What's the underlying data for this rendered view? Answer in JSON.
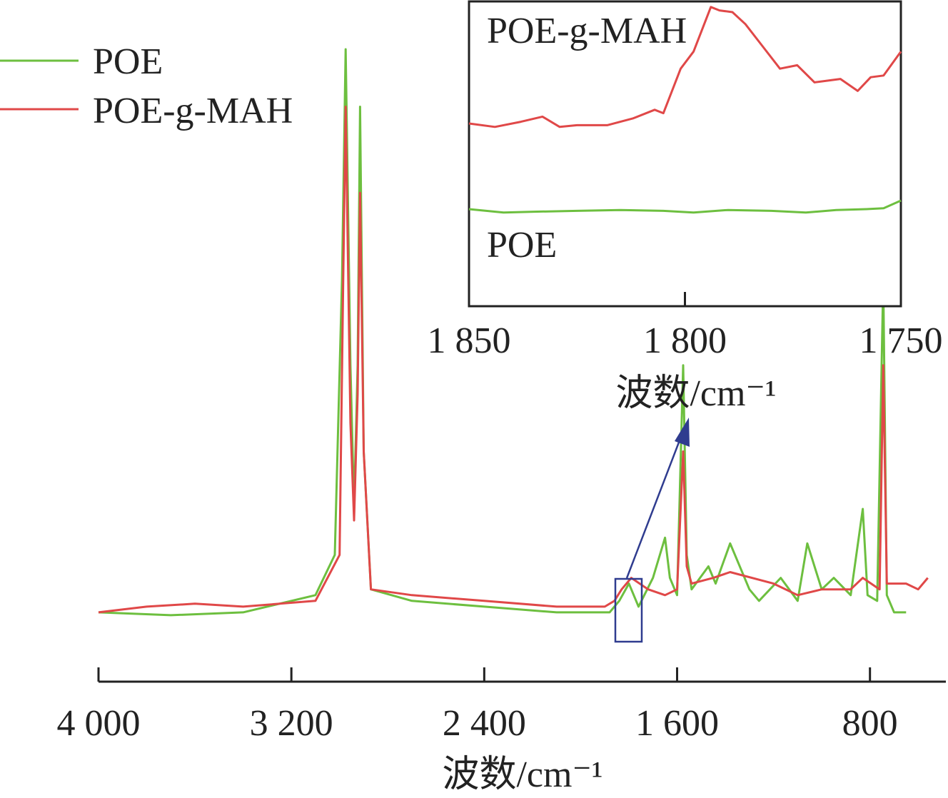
{
  "chart_data": [
    {
      "type": "line",
      "xlabel": "波数/cm⁻¹",
      "ylabel": "",
      "xlim": [
        4000,
        500
      ],
      "x_reversed": true,
      "x_ticks": [
        {
          "value": 4000,
          "label": "4 000"
        },
        {
          "value": 3200,
          "label": "3 200"
        },
        {
          "value": 2400,
          "label": "2 400"
        },
        {
          "value": 1600,
          "label": "1 600"
        },
        {
          "value": 800,
          "label": "800"
        }
      ],
      "legend_position": "top-left",
      "series": [
        {
          "name": "POE",
          "color": "#6dbf3f",
          "points": [
            [
              4000,
              0.02
            ],
            [
              3700,
              0.015
            ],
            [
              3400,
              0.02
            ],
            [
              3100,
              0.05
            ],
            [
              3020,
              0.12
            ],
            [
              2990,
              0.6
            ],
            [
              2975,
              1.0
            ],
            [
              2955,
              0.45
            ],
            [
              2940,
              0.2
            ],
            [
              2925,
              0.45
            ],
            [
              2915,
              0.9
            ],
            [
              2900,
              0.3
            ],
            [
              2870,
              0.06
            ],
            [
              2700,
              0.04
            ],
            [
              2400,
              0.03
            ],
            [
              2100,
              0.02
            ],
            [
              1880,
              0.02
            ],
            [
              1840,
              0.04
            ],
            [
              1800,
              0.07
            ],
            [
              1760,
              0.03
            ],
            [
              1700,
              0.08
            ],
            [
              1650,
              0.15
            ],
            [
              1630,
              0.08
            ],
            [
              1600,
              0.05
            ],
            [
              1575,
              0.45
            ],
            [
              1560,
              0.12
            ],
            [
              1540,
              0.06
            ],
            [
              1470,
              0.1
            ],
            [
              1440,
              0.07
            ],
            [
              1380,
              0.14
            ],
            [
              1300,
              0.06
            ],
            [
              1260,
              0.04
            ],
            [
              1170,
              0.08
            ],
            [
              1100,
              0.04
            ],
            [
              1060,
              0.14
            ],
            [
              1000,
              0.06
            ],
            [
              950,
              0.08
            ],
            [
              880,
              0.05
            ],
            [
              830,
              0.2
            ],
            [
              810,
              0.05
            ],
            [
              770,
              0.04
            ],
            [
              745,
              0.6
            ],
            [
              730,
              0.05
            ],
            [
              700,
              0.02
            ],
            [
              650,
              0.02
            ]
          ]
        },
        {
          "name": "POE-g-MAH",
          "color": "#e04848",
          "points": [
            [
              4000,
              0.02
            ],
            [
              3800,
              0.03
            ],
            [
              3600,
              0.035
            ],
            [
              3400,
              0.03
            ],
            [
              3100,
              0.04
            ],
            [
              3000,
              0.12
            ],
            [
              2985,
              0.6
            ],
            [
              2975,
              0.9
            ],
            [
              2955,
              0.35
            ],
            [
              2940,
              0.18
            ],
            [
              2925,
              0.4
            ],
            [
              2915,
              0.75
            ],
            [
              2900,
              0.3
            ],
            [
              2870,
              0.06
            ],
            [
              2700,
              0.05
            ],
            [
              2400,
              0.04
            ],
            [
              2100,
              0.03
            ],
            [
              1900,
              0.03
            ],
            [
              1860,
              0.04
            ],
            [
              1830,
              0.06
            ],
            [
              1790,
              0.08
            ],
            [
              1720,
              0.06
            ],
            [
              1650,
              0.05
            ],
            [
              1600,
              0.06
            ],
            [
              1575,
              0.3
            ],
            [
              1560,
              0.1
            ],
            [
              1540,
              0.07
            ],
            [
              1450,
              0.08
            ],
            [
              1380,
              0.09
            ],
            [
              1200,
              0.07
            ],
            [
              1100,
              0.05
            ],
            [
              1000,
              0.06
            ],
            [
              880,
              0.06
            ],
            [
              830,
              0.08
            ],
            [
              760,
              0.06
            ],
            [
              745,
              0.45
            ],
            [
              730,
              0.07
            ],
            [
              650,
              0.07
            ],
            [
              600,
              0.06
            ],
            [
              560,
              0.08
            ]
          ]
        }
      ]
    },
    {
      "type": "line",
      "xlabel": "波数/cm⁻¹",
      "ylabel": "",
      "xlim": [
        1850,
        1750
      ],
      "x_reversed": true,
      "x_ticks": [
        {
          "value": 1850,
          "label": "1 850"
        },
        {
          "value": 1800,
          "label": "1 800"
        },
        {
          "value": 1750,
          "label": "1 750"
        }
      ],
      "annotations": [
        "POE-g-MAH",
        "POE"
      ],
      "series": [
        {
          "name": "POE-g-MAH",
          "color": "#e04848",
          "points": [
            [
              1850,
              0.3
            ],
            [
              1844,
              0.28
            ],
            [
              1838,
              0.31
            ],
            [
              1833,
              0.34
            ],
            [
              1829,
              0.28
            ],
            [
              1825,
              0.29
            ],
            [
              1818,
              0.29
            ],
            [
              1812,
              0.33
            ],
            [
              1807,
              0.38
            ],
            [
              1805,
              0.36
            ],
            [
              1801,
              0.62
            ],
            [
              1798,
              0.72
            ],
            [
              1794,
              0.98
            ],
            [
              1792,
              0.96
            ],
            [
              1789,
              0.95
            ],
            [
              1786,
              0.88
            ],
            [
              1782,
              0.75
            ],
            [
              1778,
              0.62
            ],
            [
              1774,
              0.64
            ],
            [
              1770,
              0.54
            ],
            [
              1767,
              0.55
            ],
            [
              1764,
              0.56
            ],
            [
              1760,
              0.49
            ],
            [
              1757,
              0.57
            ],
            [
              1754,
              0.58
            ],
            [
              1750,
              0.72
            ]
          ]
        },
        {
          "name": "POE",
          "color": "#6dbf3f",
          "points": [
            [
              1850,
              0.05
            ],
            [
              1842,
              0.03
            ],
            [
              1835,
              0.035
            ],
            [
              1825,
              0.04
            ],
            [
              1815,
              0.045
            ],
            [
              1805,
              0.04
            ],
            [
              1798,
              0.03
            ],
            [
              1790,
              0.045
            ],
            [
              1780,
              0.04
            ],
            [
              1772,
              0.03
            ],
            [
              1765,
              0.045
            ],
            [
              1758,
              0.05
            ],
            [
              1754,
              0.055
            ],
            [
              1750,
              0.1
            ]
          ]
        }
      ]
    }
  ]
}
